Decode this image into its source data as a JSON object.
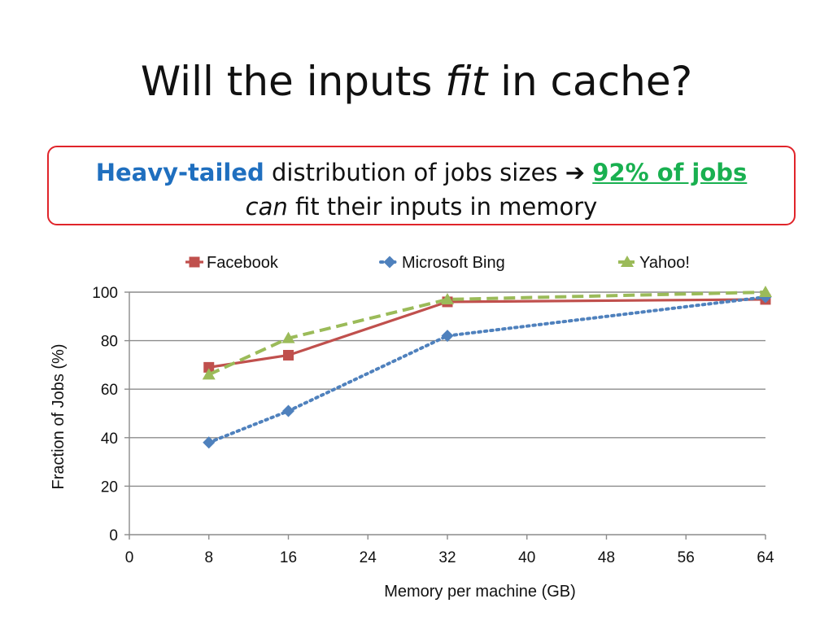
{
  "slide": {
    "title_before": "Will the inputs ",
    "title_em": "fit",
    "title_after": " in cache?"
  },
  "callout": {
    "highlight_blue": "Heavy-tailed",
    "text_mid": " distribution of jobs sizes ",
    "arrow": "➔",
    "highlight_green": "92% of jobs",
    "line2_italic": "can",
    "line2_rest": " fit their inputs in memory",
    "border_color": "#e0242a",
    "blue_color": "#1f6fbf",
    "green_color": "#19b050"
  },
  "chart_data": {
    "type": "line",
    "xlabel": "Memory per machine (GB)",
    "ylabel": "Fraction of Jobs (%)",
    "xlim": [
      0,
      64
    ],
    "ylim": [
      0,
      100
    ],
    "xticks": [
      0,
      8,
      16,
      24,
      32,
      40,
      48,
      56,
      64
    ],
    "yticks": [
      0,
      20,
      40,
      60,
      80,
      100
    ],
    "grid": "horizontal",
    "legend_position": "top",
    "series": [
      {
        "name": "Facebook",
        "x": [
          8,
          16,
          32,
          64
        ],
        "values": [
          69,
          74,
          96,
          97
        ],
        "color": "#c0504d",
        "marker": "square",
        "line": "solid"
      },
      {
        "name": "Microsoft Bing",
        "x": [
          8,
          16,
          32,
          64
        ],
        "values": [
          38,
          51,
          82,
          98
        ],
        "color": "#4f81bd",
        "marker": "diamond",
        "line": "dotted"
      },
      {
        "name": "Yahoo!",
        "x": [
          8,
          16,
          32,
          64
        ],
        "values": [
          66,
          81,
          97,
          100
        ],
        "color": "#9bbb59",
        "marker": "triangle",
        "line": "dashed"
      }
    ]
  }
}
